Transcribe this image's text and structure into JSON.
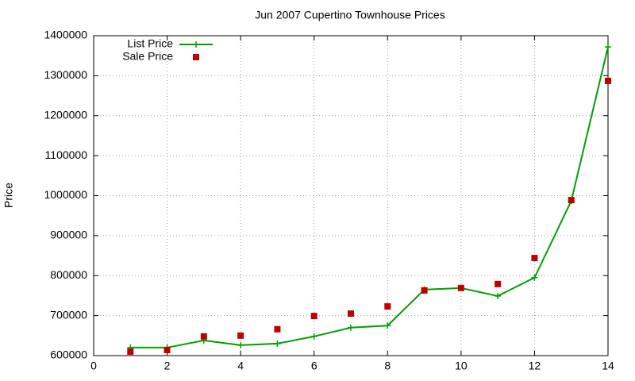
{
  "chart_data": {
    "type": "line",
    "title": "Jun 2007 Cupertino Townhouse Prices",
    "y_label": "Price",
    "x": [
      1,
      2,
      3,
      4,
      5,
      6,
      7,
      8,
      9,
      10,
      11,
      12,
      13,
      14
    ],
    "series": [
      {
        "name": "List Price",
        "color": "#00a000",
        "style": "linespoints",
        "values": [
          620000,
          620000,
          638000,
          626000,
          630000,
          648000,
          670000,
          675000,
          765000,
          769000,
          749000,
          795000,
          987000,
          1372000
        ]
      },
      {
        "name": "Sale Price",
        "color": "#c00000",
        "style": "points",
        "values": [
          610000,
          614000,
          648000,
          650000,
          666000,
          699000,
          705000,
          723000,
          763000,
          769000,
          779000,
          844000,
          989000,
          1287000
        ]
      }
    ],
    "xlim": [
      0,
      14
    ],
    "xticks": [
      0,
      2,
      4,
      6,
      8,
      10,
      12,
      14
    ],
    "ylim": [
      600000,
      1400000
    ],
    "yticks": [
      600000,
      700000,
      800000,
      900000,
      1000000,
      1100000,
      1200000,
      1300000,
      1400000
    ],
    "grid": true,
    "legend": "top-left"
  }
}
